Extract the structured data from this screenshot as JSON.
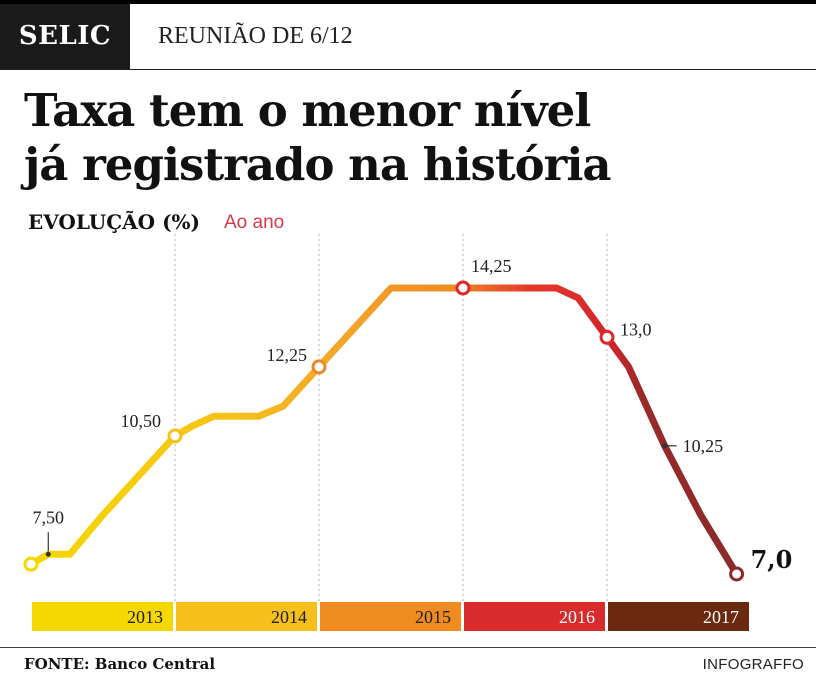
{
  "header": {
    "tag": "SELIC",
    "subtitle": "REUNIÃO DE 6/12"
  },
  "headline": {
    "line1": "Taxa tem o menor nível",
    "line2": "já registrado na história"
  },
  "chart_header": {
    "series_label": "EVOLUÇÃO (%)",
    "unit_label": "Ao ano"
  },
  "chart_data": {
    "type": "line",
    "title": "Taxa tem o menor nível já registrado na história",
    "ylabel": "EVOLUÇÃO (%) Ao ano",
    "ylim": [
      7.0,
      14.25
    ],
    "xlim": [
      2013.0,
      2018.0
    ],
    "years": [
      "2013",
      "2014",
      "2015",
      "2016",
      "2017"
    ],
    "year_colors": [
      "#f5d800",
      "#f6bf1c",
      "#f08c1f",
      "#d92b2b",
      "#6b2a0f"
    ],
    "series": [
      {
        "name": "Selic",
        "points": [
          {
            "x": 2013.0,
            "y": 7.25
          },
          {
            "x": 2013.12,
            "y": 7.5
          },
          {
            "x": 2013.27,
            "y": 7.5
          },
          {
            "x": 2013.5,
            "y": 8.5
          },
          {
            "x": 2013.75,
            "y": 9.5
          },
          {
            "x": 2014.0,
            "y": 10.5
          },
          {
            "x": 2014.12,
            "y": 10.75
          },
          {
            "x": 2014.27,
            "y": 11.0
          },
          {
            "x": 2014.58,
            "y": 11.0
          },
          {
            "x": 2014.75,
            "y": 11.25
          },
          {
            "x": 2015.0,
            "y": 12.25
          },
          {
            "x": 2015.25,
            "y": 13.25
          },
          {
            "x": 2015.5,
            "y": 14.25
          },
          {
            "x": 2016.0,
            "y": 14.25
          },
          {
            "x": 2016.65,
            "y": 14.25
          },
          {
            "x": 2016.8,
            "y": 14.0
          },
          {
            "x": 2017.0,
            "y": 13.0
          },
          {
            "x": 2017.15,
            "y": 12.25
          },
          {
            "x": 2017.4,
            "y": 10.25
          },
          {
            "x": 2017.65,
            "y": 8.5
          },
          {
            "x": 2017.9,
            "y": 7.0
          }
        ]
      }
    ],
    "labels": [
      {
        "x": 2013.12,
        "y": 7.5,
        "text": "7,50"
      },
      {
        "x": 2014.0,
        "y": 10.5,
        "text": "10,50"
      },
      {
        "x": 2015.0,
        "y": 12.25,
        "text": "12,25"
      },
      {
        "x": 2016.0,
        "y": 14.25,
        "text": "14,25"
      },
      {
        "x": 2017.0,
        "y": 13.0,
        "text": "13,0"
      },
      {
        "x": 2017.4,
        "y": 10.25,
        "text": "10,25"
      },
      {
        "x": 2017.9,
        "y": 7.0,
        "text": "7,0"
      }
    ],
    "markers": [
      {
        "x": 2013.0,
        "y": 7.25
      },
      {
        "x": 2014.0,
        "y": 10.5
      },
      {
        "x": 2015.0,
        "y": 12.25
      },
      {
        "x": 2016.0,
        "y": 14.25
      },
      {
        "x": 2017.0,
        "y": 13.0
      },
      {
        "x": 2017.9,
        "y": 7.0
      }
    ],
    "dots": [
      {
        "x": 2013.12,
        "y": 7.5
      },
      {
        "x": 2017.4,
        "y": 10.25
      }
    ]
  },
  "footer": {
    "source": "FONTE: Banco Central",
    "credit": "INFOGRAFFO"
  }
}
